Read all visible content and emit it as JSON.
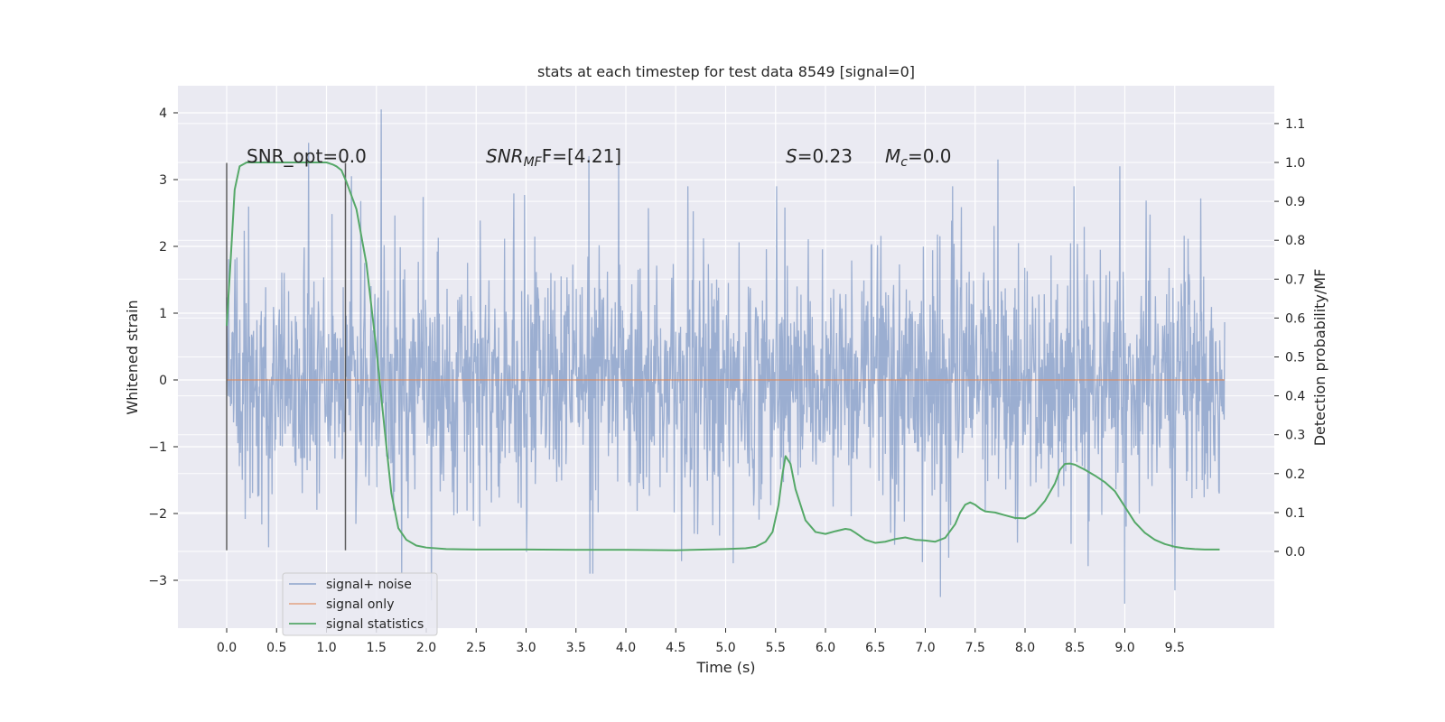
{
  "chart_data": {
    "type": "line",
    "title": "stats at each timestep for test data 8549 [signal=0]",
    "xlabel": "Time (s)",
    "ylabel_left": "Whitened strain",
    "ylabel_right": "Detection probability/MF",
    "xlim": [
      -0.5,
      10.5
    ],
    "ylim_left": [
      -3.7,
      4.4
    ],
    "ylim_right": [
      -0.195,
      1.2
    ],
    "x_ticks": [
      "0.0",
      "0.5",
      "1.0",
      "1.5",
      "2.0",
      "2.5",
      "3.0",
      "3.5",
      "4.0",
      "4.5",
      "5.0",
      "5.5",
      "6.0",
      "6.5",
      "7.0",
      "7.5",
      "8.0",
      "8.5",
      "9.0",
      "9.5"
    ],
    "x_tick_values": [
      0.0,
      0.5,
      1.0,
      1.5,
      2.0,
      2.5,
      3.0,
      3.5,
      4.0,
      4.5,
      5.0,
      5.5,
      6.0,
      6.5,
      7.0,
      7.5,
      8.0,
      8.5,
      9.0,
      9.5
    ],
    "y_ticks_left": [
      "−3",
      "−2",
      "−1",
      "0",
      "1",
      "2",
      "3",
      "4"
    ],
    "y_tick_values_left": [
      -3,
      -2,
      -1,
      0,
      1,
      2,
      3,
      4
    ],
    "y_ticks_right": [
      "0.0",
      "0.1",
      "0.2",
      "0.3",
      "0.4",
      "0.5",
      "0.6",
      "0.7",
      "0.8",
      "0.9",
      "1.0",
      "1.1"
    ],
    "y_tick_values_right": [
      0.0,
      0.1,
      0.2,
      0.3,
      0.4,
      0.5,
      0.6,
      0.7,
      0.8,
      0.9,
      1.0,
      1.1
    ],
    "grid": true,
    "legend": {
      "position": "lower-left",
      "entries": [
        "signal+ noise",
        "signal only",
        "signal statistics"
      ]
    },
    "annotations": {
      "snr_opt": "SNR_opt=0.0",
      "snr_mf_prefix": "SNR",
      "snr_mf_sub": "MF",
      "snr_mf_rest": "F=[4.21]",
      "s_italic": "S",
      "s_rest": "=0.23",
      "mc_italic": "M",
      "mc_sub": "c",
      "mc_rest": "=0.0"
    },
    "window_lines_x": [
      0.0,
      1.19
    ],
    "window_lines_y": [
      -2.55,
      3.25
    ],
    "series": [
      {
        "name": "signal+ noise",
        "axis": "left",
        "color": "#4c72b0",
        "x_range": [
          0.0,
          10.0
        ],
        "samples": 2048,
        "envelope_typical": [
          -1.6,
          1.6
        ],
        "notable_peaks": [
          {
            "x": 1.55,
            "y": 4.05
          },
          {
            "x": 0.82,
            "y": 3.55
          },
          {
            "x": 3.63,
            "y": 3.35
          },
          {
            "x": 3.93,
            "y": 3.28
          },
          {
            "x": 1.25,
            "y": 3.05
          },
          {
            "x": 7.73,
            "y": 3.3
          },
          {
            "x": 8.95,
            "y": 3.2
          },
          {
            "x": 2.05,
            "y": -3.3
          },
          {
            "x": 9.0,
            "y": -3.35
          },
          {
            "x": 7.15,
            "y": -3.25
          },
          {
            "x": 9.5,
            "y": -3.15
          }
        ]
      },
      {
        "name": "signal only",
        "axis": "left",
        "color": "#dd8452",
        "x": [
          0.0,
          10.0
        ],
        "y": [
          0.0,
          0.0
        ]
      },
      {
        "name": "signal statistics",
        "axis": "right",
        "color": "#55a868",
        "x": [
          0.0,
          0.04,
          0.08,
          0.13,
          0.2,
          0.3,
          0.5,
          0.7,
          0.9,
          1.0,
          1.06,
          1.1,
          1.15,
          1.2,
          1.3,
          1.4,
          1.5,
          1.58,
          1.65,
          1.72,
          1.8,
          1.9,
          2.0,
          2.2,
          2.5,
          3.0,
          3.5,
          4.0,
          4.5,
          5.0,
          5.2,
          5.3,
          5.4,
          5.47,
          5.53,
          5.57,
          5.6,
          5.65,
          5.7,
          5.8,
          5.9,
          6.0,
          6.1,
          6.2,
          6.25,
          6.3,
          6.4,
          6.5,
          6.6,
          6.7,
          6.8,
          6.9,
          7.0,
          7.1,
          7.2,
          7.3,
          7.35,
          7.4,
          7.45,
          7.5,
          7.55,
          7.6,
          7.7,
          7.8,
          7.9,
          8.0,
          8.1,
          8.2,
          8.3,
          8.35,
          8.4,
          8.45,
          8.5,
          8.6,
          8.7,
          8.8,
          8.9,
          9.0,
          9.1,
          9.2,
          9.3,
          9.4,
          9.5,
          9.6,
          9.7,
          9.8,
          9.95
        ],
        "y": [
          0.58,
          0.75,
          0.93,
          0.99,
          1.0,
          1.0,
          1.0,
          1.0,
          1.0,
          1.0,
          0.995,
          0.99,
          0.98,
          0.95,
          0.88,
          0.74,
          0.52,
          0.32,
          0.15,
          0.06,
          0.03,
          0.015,
          0.01,
          0.006,
          0.005,
          0.005,
          0.004,
          0.004,
          0.003,
          0.006,
          0.008,
          0.012,
          0.025,
          0.05,
          0.12,
          0.2,
          0.245,
          0.225,
          0.16,
          0.08,
          0.05,
          0.045,
          0.052,
          0.058,
          0.056,
          0.048,
          0.03,
          0.022,
          0.025,
          0.032,
          0.036,
          0.03,
          0.028,
          0.025,
          0.035,
          0.07,
          0.1,
          0.12,
          0.126,
          0.12,
          0.11,
          0.103,
          0.1,
          0.093,
          0.086,
          0.085,
          0.1,
          0.13,
          0.175,
          0.21,
          0.225,
          0.226,
          0.223,
          0.21,
          0.195,
          0.178,
          0.155,
          0.115,
          0.075,
          0.048,
          0.03,
          0.019,
          0.012,
          0.008,
          0.006,
          0.005,
          0.005
        ]
      }
    ]
  }
}
